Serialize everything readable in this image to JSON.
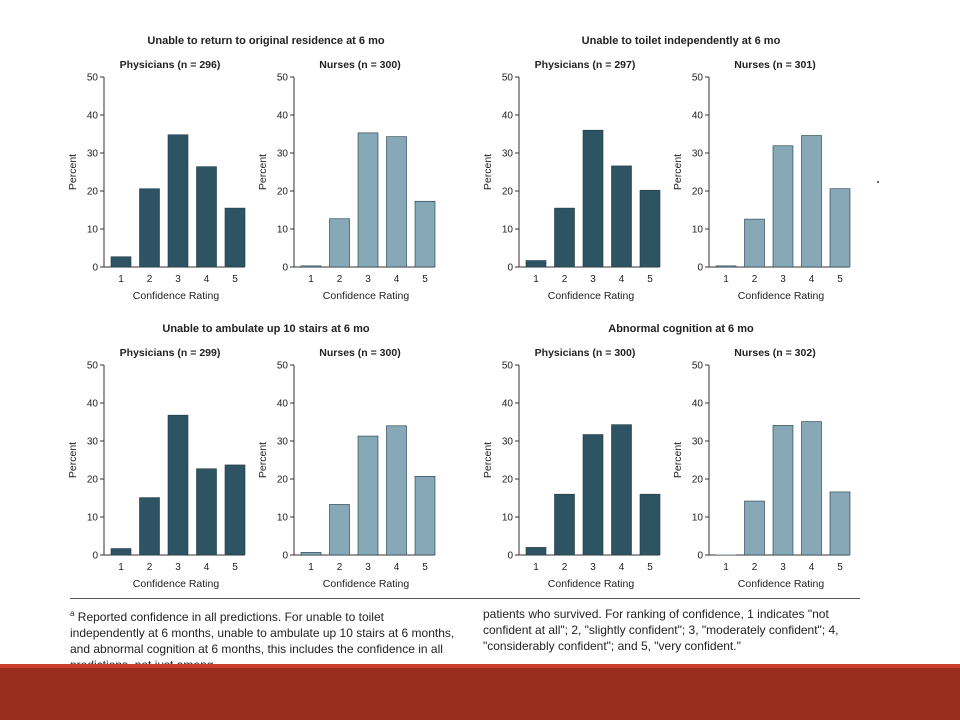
{
  "colors": {
    "physicians": "#2e5463",
    "nurses": "#87a8b7",
    "axis": "#333333",
    "footer": "#9b2d1f"
  },
  "chart_data": [
    {
      "type": "bar",
      "title": "Unable to return to original residence at 6 mo",
      "panels": [
        {
          "group": "physicians",
          "title": "Physicians (n = 296)",
          "categories": [
            "1",
            "2",
            "3",
            "4",
            "5"
          ],
          "values": [
            2.7,
            20.6,
            34.8,
            26.4,
            15.5
          ],
          "xlabel": "Confidence Rating",
          "ylabel": "Percent",
          "ylim": [
            0,
            50
          ],
          "yticks": [
            "0",
            "10",
            "20",
            "30",
            "40",
            "50"
          ]
        },
        {
          "group": "nurses",
          "title": "Nurses (n = 300)",
          "categories": [
            "1",
            "2",
            "3",
            "4",
            "5"
          ],
          "values": [
            0.3,
            12.7,
            35.3,
            34.3,
            17.3
          ],
          "xlabel": "Confidence Rating",
          "ylabel": "Percent",
          "ylim": [
            0,
            50
          ],
          "yticks": [
            "0",
            "10",
            "20",
            "30",
            "40",
            "50"
          ]
        }
      ]
    },
    {
      "type": "bar",
      "title": "Unable to toilet independently at 6 mo",
      "panels": [
        {
          "group": "physicians",
          "title": "Physicians (n = 297)",
          "categories": [
            "1",
            "2",
            "3",
            "4",
            "5"
          ],
          "values": [
            1.7,
            15.5,
            36.0,
            26.6,
            20.2
          ],
          "xlabel": "Confidence Rating",
          "ylabel": "Percent",
          "ylim": [
            0,
            50
          ],
          "yticks": [
            "0",
            "10",
            "20",
            "30",
            "40",
            "50"
          ]
        },
        {
          "group": "nurses",
          "title": "Nurses (n = 301)",
          "categories": [
            "1",
            "2",
            "3",
            "4",
            "5"
          ],
          "values": [
            0.3,
            12.6,
            31.9,
            34.6,
            20.6
          ],
          "xlabel": "Confidence Rating",
          "ylabel": "Percent",
          "ylim": [
            0,
            50
          ],
          "yticks": [
            "0",
            "10",
            "20",
            "30",
            "40",
            "50"
          ]
        }
      ]
    },
    {
      "type": "bar",
      "title": "Unable to ambulate up 10 stairs at 6 mo",
      "panels": [
        {
          "group": "physicians",
          "title": "Physicians (n = 299)",
          "categories": [
            "1",
            "2",
            "3",
            "4",
            "5"
          ],
          "values": [
            1.7,
            15.1,
            36.8,
            22.7,
            23.7
          ],
          "xlabel": "Confidence Rating",
          "ylabel": "Percent",
          "ylim": [
            0,
            50
          ],
          "yticks": [
            "0",
            "10",
            "20",
            "30",
            "40",
            "50"
          ]
        },
        {
          "group": "nurses",
          "title": "Nurses (n = 300)",
          "categories": [
            "1",
            "2",
            "3",
            "4",
            "5"
          ],
          "values": [
            0.7,
            13.3,
            31.3,
            34.0,
            20.7
          ],
          "xlabel": "Confidence Rating",
          "ylabel": "Percent",
          "ylim": [
            0,
            50
          ],
          "yticks": [
            "0",
            "10",
            "20",
            "30",
            "40",
            "50"
          ]
        }
      ]
    },
    {
      "type": "bar",
      "title": "Abnormal cognition at 6 mo",
      "panels": [
        {
          "group": "physicians",
          "title": "Physicians (n = 300)",
          "categories": [
            "1",
            "2",
            "3",
            "4",
            "5"
          ],
          "values": [
            2.0,
            16.0,
            31.7,
            34.3,
            16.0
          ],
          "xlabel": "Confidence Rating",
          "ylabel": "Percent",
          "ylim": [
            0,
            50
          ],
          "yticks": [
            "0",
            "10",
            "20",
            "30",
            "40",
            "50"
          ]
        },
        {
          "group": "nurses",
          "title": "Nurses (n = 302)",
          "categories": [
            "1",
            "2",
            "3",
            "4",
            "5"
          ],
          "values": [
            0.0,
            14.2,
            34.1,
            35.1,
            16.6
          ],
          "xlabel": "Confidence Rating",
          "ylabel": "Percent",
          "ylim": [
            0,
            50
          ],
          "yticks": [
            "0",
            "10",
            "20",
            "30",
            "40",
            "50"
          ]
        }
      ]
    }
  ],
  "footnote": {
    "marker": "a",
    "left": " Reported confidence in all predictions. For unable to toilet independently at 6 months, unable to ambulate up 10 stairs at 6 months, and abnormal cognition at 6 months, this includes the confidence in all predictions, not just among",
    "right": "patients who survived. For ranking of confidence, 1 indicates \"not confident at all\"; 2, \"slightly confident\"; 3, \"moderately confident\"; 4, \"considerably confident\"; and 5, \"very confident.\""
  }
}
